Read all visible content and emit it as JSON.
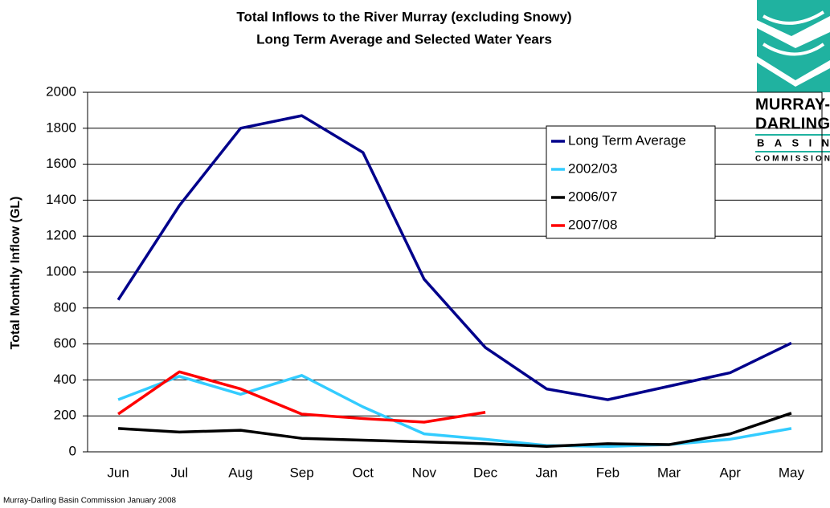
{
  "chart_data": {
    "type": "line",
    "title": "Total Inflows to the River Murray (excluding Snowy)",
    "subtitle": "Long Term Average and Selected Water Years",
    "y_label": "Total Monthly Inflow (GL)",
    "footer": "Murray-Darling Basin Commission January 2008",
    "logo": [
      "MURRAY-",
      "DARLING",
      "BASIN",
      "COMMISSION"
    ],
    "categories": [
      "Jun",
      "Jul",
      "Aug",
      "Sep",
      "Oct",
      "Nov",
      "Dec",
      "Jan",
      "Feb",
      "Mar",
      "Apr",
      "May"
    ],
    "series": [
      {
        "name": "Long Term Average",
        "color": "#00008b",
        "values": [
          845,
          1370,
          1800,
          1870,
          1665,
          960,
          580,
          350,
          290,
          365,
          440,
          605
        ]
      },
      {
        "name": "2002/03",
        "color": "#33ccff",
        "values": [
          290,
          420,
          320,
          425,
          250,
          100,
          70,
          35,
          30,
          40,
          70,
          130
        ]
      },
      {
        "name": "2006/07",
        "color": "#000000",
        "values": [
          130,
          110,
          120,
          75,
          65,
          55,
          45,
          30,
          45,
          40,
          100,
          215
        ]
      },
      {
        "name": "2007/08",
        "color": "#ff0000",
        "values": [
          210,
          445,
          350,
          210,
          185,
          165,
          220,
          null,
          null,
          null,
          null,
          null
        ]
      }
    ],
    "ylim": [
      0,
      2000
    ],
    "yticks": [
      0,
      200,
      400,
      600,
      800,
      1000,
      1200,
      1400,
      1600,
      1800,
      2000
    ],
    "grid": true
  }
}
